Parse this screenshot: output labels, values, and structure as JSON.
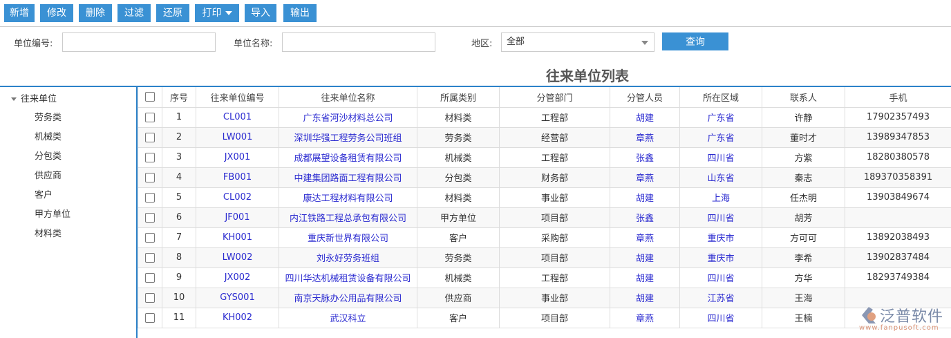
{
  "toolbar": {
    "buttons": [
      "新增",
      "修改",
      "删除",
      "过滤",
      "还原",
      "打印",
      "导入",
      "输出"
    ]
  },
  "search": {
    "code_label": "单位编号:",
    "code_value": "",
    "name_label": "单位名称:",
    "name_value": "",
    "region_label": "地区:",
    "region_value": "全部",
    "query_label": "查询"
  },
  "title": "往来单位列表",
  "tree": {
    "root": "往来单位",
    "items": [
      "劳务类",
      "机械类",
      "分包类",
      "供应商",
      "客户",
      "甲方单位",
      "材料类"
    ]
  },
  "table": {
    "headers": [
      "序号",
      "往来单位编号",
      "往来单位名称",
      "所属类别",
      "分管部门",
      "分管人员",
      "所在区域",
      "联系人",
      "手机"
    ],
    "rows": [
      [
        "1",
        "CL001",
        "广东省河沙材料总公司",
        "材料类",
        "工程部",
        "胡建",
        "广东省",
        "许静",
        "17902357493"
      ],
      [
        "2",
        "LW001",
        "深圳华强工程劳务公司班组",
        "劳务类",
        "经营部",
        "章燕",
        "广东省",
        "董时才",
        "13989347853"
      ],
      [
        "3",
        "JX001",
        "成都展望设备租赁有限公司",
        "机械类",
        "工程部",
        "张鑫",
        "四川省",
        "方紫",
        "18280380578"
      ],
      [
        "4",
        "FB001",
        "中建集团路面工程有限公司",
        "分包类",
        "财务部",
        "章燕",
        "山东省",
        "秦志",
        "189370358391"
      ],
      [
        "5",
        "CL002",
        "康达工程材料有限公司",
        "材料类",
        "事业部",
        "胡建",
        "上海",
        "任杰明",
        "13903849674"
      ],
      [
        "6",
        "JF001",
        "内江铁路工程总承包有限公司",
        "甲方单位",
        "项目部",
        "张鑫",
        "四川省",
        "胡芳",
        ""
      ],
      [
        "7",
        "KH001",
        "重庆新世界有限公司",
        "客户",
        "采购部",
        "章燕",
        "重庆市",
        "方可可",
        "13892038493"
      ],
      [
        "8",
        "LW002",
        "刘永好劳务班组",
        "劳务类",
        "项目部",
        "胡建",
        "重庆市",
        "李希",
        "13902837484"
      ],
      [
        "9",
        "JX002",
        "四川华达机械租赁设备有限公司",
        "机械类",
        "工程部",
        "胡建",
        "四川省",
        "方华",
        "18293749384"
      ],
      [
        "10",
        "GYS001",
        "南京天脉办公用品有限公司",
        "供应商",
        "事业部",
        "胡建",
        "江苏省",
        "王海",
        ""
      ],
      [
        "11",
        "KH002",
        "武汉科立",
        "客户",
        "项目部",
        "章燕",
        "四川省",
        "王楠",
        ""
      ]
    ]
  },
  "logo": {
    "text": "泛普软件",
    "url": "www.fanpusoft.com"
  },
  "colors": {
    "accent": "#3a91d4",
    "link": "#2a2ad0"
  }
}
